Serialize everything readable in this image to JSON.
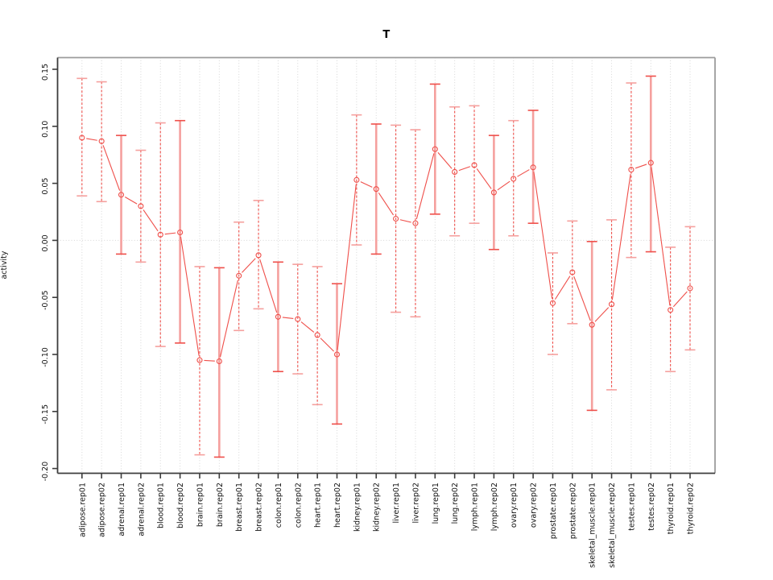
{
  "window": {
    "kind": "statistical-plot",
    "background": "#ffffff"
  },
  "chart_data": {
    "type": "line",
    "subtype": "points-with-error-bars",
    "title": "T",
    "xlabel": "",
    "ylabel": "activity",
    "legend": "none",
    "ylim": [
      -0.2,
      0.15
    ],
    "yticks": [
      0.15,
      0.1,
      0.05,
      0.0,
      -0.05,
      -0.1,
      -0.15,
      -0.2
    ],
    "ytick_labels": [
      "0.15",
      "0.10",
      "0.05",
      "0.00",
      "-0.05",
      "-0.10",
      "-0.15",
      "-0.20"
    ],
    "grid": {
      "vertical_dotted_per_category": true,
      "horizontal_dotted_at_zero": true,
      "grid_color": "#d6d6d6"
    },
    "marker": "open-circle",
    "categories": [
      "adipose.rep01",
      "adipose.rep02",
      "adrenal.rep01",
      "adrenal.rep02",
      "blood.rep01",
      "blood.rep02",
      "brain.rep01",
      "brain.rep02",
      "breast.rep01",
      "breast.rep02",
      "colon.rep01",
      "colon.rep02",
      "heart.rep01",
      "heart.rep02",
      "kidney.rep01",
      "kidney.rep02",
      "liver.rep01",
      "liver.rep02",
      "lung.rep01",
      "lung.rep02",
      "lymph.rep01",
      "lymph.rep02",
      "ovary.rep01",
      "ovary.rep02",
      "prostate.rep01",
      "prostate.rep02",
      "skeletal_muscle.rep01",
      "skeletal_muscle.rep02",
      "testes.rep01",
      "testes.rep02",
      "thyroid.rep01",
      "thyroid.rep02"
    ],
    "series": [
      {
        "name": "T activity",
        "values": [
          0.09,
          0.087,
          0.04,
          0.03,
          0.005,
          0.007,
          -0.105,
          -0.106,
          -0.031,
          -0.013,
          -0.067,
          -0.069,
          -0.083,
          -0.1,
          0.053,
          0.045,
          0.019,
          0.015,
          0.08,
          0.06,
          0.066,
          0.042,
          0.054,
          0.064,
          -0.055,
          -0.028,
          -0.074,
          -0.056,
          0.062,
          0.068,
          -0.061,
          -0.042
        ],
        "ci_low": [
          0.039,
          0.034,
          -0.012,
          -0.019,
          -0.093,
          -0.09,
          -0.188,
          -0.19,
          -0.079,
          -0.06,
          -0.115,
          -0.117,
          -0.144,
          -0.161,
          -0.004,
          -0.012,
          -0.063,
          -0.067,
          0.023,
          0.004,
          0.015,
          -0.008,
          0.004,
          0.015,
          -0.1,
          -0.073,
          -0.149,
          -0.131,
          -0.015,
          -0.01,
          -0.115,
          -0.096
        ],
        "ci_high": [
          0.142,
          0.139,
          0.092,
          0.079,
          0.103,
          0.105,
          -0.023,
          -0.024,
          0.016,
          0.035,
          -0.019,
          -0.021,
          -0.023,
          -0.038,
          0.11,
          0.102,
          0.101,
          0.097,
          0.137,
          0.117,
          0.118,
          0.092,
          0.105,
          0.114,
          -0.011,
          0.017,
          -0.001,
          0.018,
          0.138,
          0.144,
          -0.006,
          0.012
        ],
        "errorbar_style": [
          "dashed",
          "dashed",
          "solid",
          "dashed",
          "dashed",
          "solid",
          "dashed",
          "solid",
          "dashed",
          "dashed",
          "solid",
          "dashed",
          "dashed",
          "solid",
          "dashed",
          "solid",
          "dashed",
          "dashed",
          "solid",
          "dashed",
          "dashed",
          "solid",
          "dashed",
          "solid",
          "dashed",
          "dashed",
          "solid",
          "dashed",
          "dashed",
          "solid",
          "dashed",
          "dashed"
        ]
      }
    ],
    "colors": {
      "series_red": "#ef4f4a",
      "errorbar_pink": "#f5a09e",
      "grid": "#d6d6d6",
      "axis_dark": "#3c3c3c",
      "box_gray": "#9c9c9c",
      "text": "#111111"
    }
  }
}
